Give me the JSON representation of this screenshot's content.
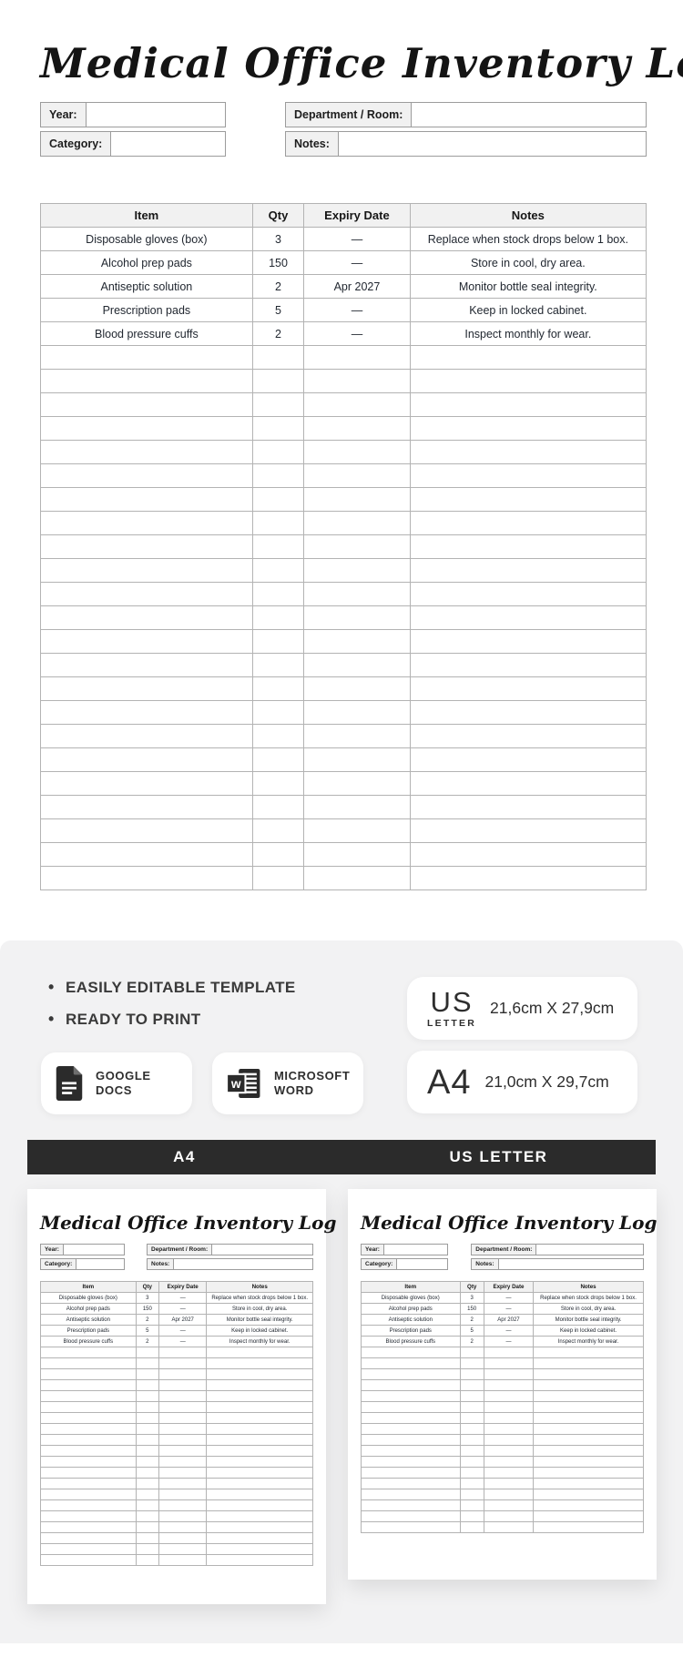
{
  "template": {
    "title": "Medical Office Inventory Log",
    "fields": {
      "year": "Year:",
      "category": "Category:",
      "department": "Department / Room:",
      "notes": "Notes:"
    },
    "table": {
      "headers": [
        "Item",
        "Qty",
        "Expiry Date",
        "Notes"
      ],
      "rows": [
        [
          "Disposable gloves (box)",
          "3",
          "—",
          "Replace when stock drops below 1 box."
        ],
        [
          "Alcohol prep pads",
          "150",
          "—",
          "Store in cool, dry area."
        ],
        [
          "Antiseptic solution",
          "2",
          "Apr 2027",
          "Monitor bottle seal integrity."
        ],
        [
          "Prescription pads",
          "5",
          "—",
          "Keep in locked cabinet."
        ],
        [
          "Blood pressure cuffs",
          "2",
          "—",
          "Inspect monthly for wear."
        ]
      ],
      "empty_rows_main": 23
    }
  },
  "info": {
    "features": [
      "EASILY EDITABLE TEMPLATE",
      "READY TO PRINT"
    ],
    "formats": [
      {
        "label": "GOOGLE DOCS",
        "icon": "google-docs-icon"
      },
      {
        "label": "MICROSOFT WORD",
        "icon": "microsoft-word-icon"
      }
    ],
    "sizes": [
      {
        "code": "US",
        "code_sub": "LETTER",
        "dimensions": "21,6cm X 27,9cm"
      },
      {
        "code": "A4",
        "code_sub": "",
        "dimensions": "21,0cm X 29,7cm"
      }
    ],
    "preview_labels": {
      "a4": "A4",
      "us": "US LETTER"
    }
  },
  "colors": {
    "dark_bar": "#2b2b2b",
    "section_bg": "#f2f2f3",
    "table_header_bg": "#f1f1f1",
    "table_border": "#b3b3b3",
    "text_dark": "#222831"
  }
}
